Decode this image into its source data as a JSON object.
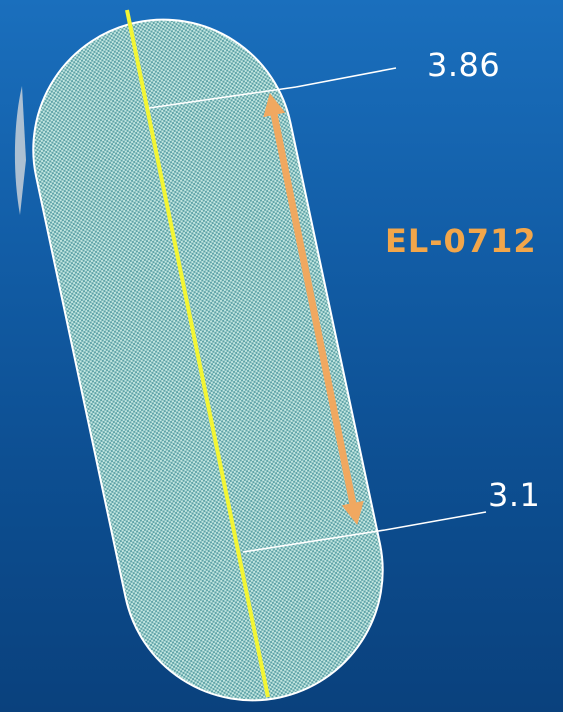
{
  "labels": {
    "top_value": "3.86",
    "bottom_value": "3.1",
    "elevation_code": "EL-0712"
  },
  "colors": {
    "background_top": "#1a6fbd",
    "background_bottom": "#0a417d",
    "capsule_fill": "#8fc9c3",
    "capsule_outline": "#ffffff",
    "centerline": "#f2f535",
    "arrow": "#f0a860",
    "label_text": "#ffffff",
    "code_text": "#f2a64a"
  }
}
